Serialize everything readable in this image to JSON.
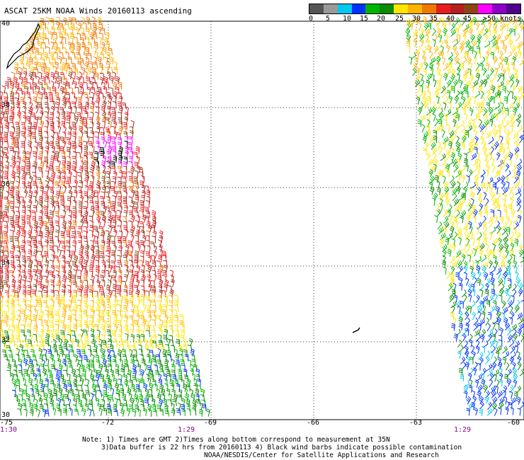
{
  "title": "ASCAT 25KM NOAA Winds 20160113 ascending",
  "legend": {
    "colors": [
      "#555555",
      "#9a9a9a",
      "#00c8f0",
      "#0032ff",
      "#00b400",
      "#0a8a00",
      "#ffe600",
      "#ffb400",
      "#f07800",
      "#e61e1e",
      "#b41e1e",
      "#8b4513",
      "#ff00ff",
      "#8c00c8",
      "#50008c"
    ],
    "labels": [
      "0",
      "5",
      "10",
      "15",
      "20",
      "25",
      "30",
      "35",
      "40",
      "45",
      ">50 knots"
    ]
  },
  "axes": {
    "x_ticks": [
      "-75",
      "-72",
      "-69",
      "-66",
      "-63",
      "-60"
    ],
    "y_ticks": [
      "40",
      "38",
      "36",
      "34",
      "32",
      "30"
    ]
  },
  "time_labels": [
    "1:30",
    "1:29",
    "1:29"
  ],
  "notes": [
    "Note: 1) Times are GMT 2)Times along bottom correspond to measurement at 35N",
    "3)Data buffer is 22 hrs from 20160113 4) Black wind barbs indicate possible contamination",
    "NOAA/NESDIS/Center for Satellite Applications and Research"
  ]
}
